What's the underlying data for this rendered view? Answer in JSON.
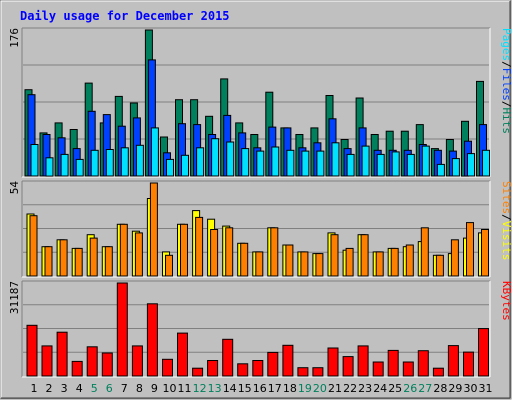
{
  "chart_data": [
    {
      "type": "bar",
      "title": "Daily usage for December 2015",
      "y_max_label": "176",
      "categories": [
        "1",
        "2",
        "3",
        "4",
        "5",
        "6",
        "7",
        "8",
        "9",
        "10",
        "11",
        "12",
        "13",
        "14",
        "15",
        "16",
        "17",
        "18",
        "19",
        "20",
        "21",
        "22",
        "23",
        "24",
        "25",
        "26",
        "27",
        "28",
        "29",
        "30",
        "31"
      ],
      "weekend_days": [
        "5",
        "6",
        "12",
        "13",
        "19",
        "20",
        "26",
        "27"
      ],
      "ylim": [
        0,
        176
      ],
      "series": [
        {
          "name": "Hits",
          "values": [
            104,
            52,
            64,
            56,
            112,
            64,
            96,
            88,
            176,
            47,
            92,
            92,
            72,
            117,
            64,
            50,
            101,
            58,
            50,
            58,
            97,
            44,
            94,
            50,
            54,
            54,
            62,
            33,
            44,
            66,
            114
          ]
        },
        {
          "name": "Files",
          "values": [
            98,
            50,
            46,
            33,
            78,
            74,
            60,
            70,
            140,
            28,
            63,
            62,
            50,
            73,
            52,
            34,
            59,
            58,
            34,
            40,
            69,
            33,
            58,
            31,
            31,
            31,
            38,
            31,
            30,
            42,
            62
          ]
        },
        {
          "name": "Pages",
          "values": [
            38,
            22,
            26,
            20,
            31,
            32,
            34,
            37,
            58,
            20,
            25,
            34,
            45,
            41,
            33,
            30,
            35,
            31,
            30,
            30,
            40,
            26,
            36,
            26,
            29,
            26,
            36,
            14,
            21,
            27,
            31
          ]
        }
      ],
      "legend": [
        "Pages",
        "/",
        "Files",
        "/",
        "Hits"
      ]
    },
    {
      "type": "bar",
      "y_max_label": "54",
      "ylim": [
        0,
        54
      ],
      "series": [
        {
          "name": "Visits",
          "values": [
            36,
            17,
            21,
            16,
            24,
            17,
            30,
            26,
            45,
            14,
            30,
            38,
            33,
            29,
            19,
            14,
            28,
            18,
            14,
            13,
            25,
            15,
            24,
            14,
            16,
            17,
            20,
            12,
            13,
            22,
            25
          ]
        },
        {
          "name": "Sites",
          "values": [
            35,
            17,
            21,
            16,
            22,
            17,
            30,
            25,
            54,
            12,
            30,
            34,
            27,
            28,
            19,
            14,
            28,
            18,
            14,
            13,
            24,
            16,
            24,
            14,
            16,
            18,
            28,
            12,
            21,
            31,
            27
          ]
        }
      ],
      "legend": [
        "Sites",
        "/",
        "Visits"
      ]
    },
    {
      "type": "bar",
      "y_max_label": "31187",
      "ylim": [
        0,
        31187
      ],
      "series": [
        {
          "name": "KBytes",
          "values": [
            17000,
            10100,
            14700,
            4900,
            9800,
            7700,
            31187,
            10100,
            24200,
            5600,
            14400,
            2600,
            5200,
            12300,
            4100,
            5200,
            7900,
            10300,
            2800,
            2800,
            9400,
            6500,
            10100,
            4700,
            8600,
            4700,
            8500,
            2600,
            10200,
            8000,
            15900
          ]
        }
      ],
      "legend": [
        "KBytes"
      ]
    }
  ],
  "colors": {
    "background": "#C0C0C0",
    "frame_outer": "#808080",
    "hits": "#00805C",
    "files": "#0040FF",
    "pages": "#00E0FF",
    "visits": "#FFFF00",
    "sites": "#FF8000",
    "kbytes": "#FF0000",
    "title_text": "#0000FF",
    "weekend_text": "#00805C"
  }
}
